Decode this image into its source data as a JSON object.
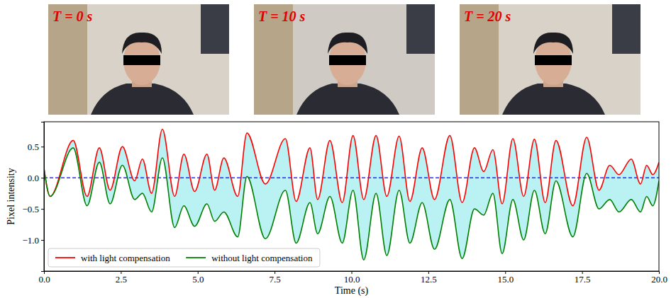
{
  "chart_data": {
    "type": "line",
    "x_label": "Time (s)",
    "y_label": "Pixel intensity",
    "x": [
      0,
      0.2,
      0.95,
      1.4,
      1.8,
      2.15,
      2.55,
      2.95,
      3.2,
      3.5,
      3.85,
      4.25,
      4.55,
      4.9,
      5.3,
      5.55,
      5.85,
      6.3,
      6.6,
      7.2,
      7.85,
      8.2,
      8.65,
      8.9,
      9.3,
      9.7,
      10.05,
      10.4,
      10.8,
      11.15,
      11.55,
      11.9,
      12.3,
      12.7,
      13.2,
      13.6,
      14.0,
      14.3,
      14.6,
      14.9,
      15.25,
      15.6,
      15.95,
      16.3,
      16.65,
      17.2,
      17.65,
      18.05,
      18.4,
      18.7,
      19.1,
      19.4,
      19.6,
      19.8,
      20
    ],
    "series": [
      {
        "name": "with light compensation",
        "color": "#ff0000",
        "values": [
          0.15,
          -0.3,
          0.6,
          -0.3,
          0.48,
          -0.2,
          0.5,
          -0.05,
          0.3,
          -0.25,
          0.78,
          -0.3,
          0.38,
          -0.22,
          0.38,
          -0.2,
          0.32,
          -0.3,
          0.72,
          -0.1,
          0.63,
          -0.38,
          0.48,
          -0.35,
          0.6,
          -0.4,
          0.68,
          -0.35,
          0.68,
          -0.3,
          0.67,
          -0.38,
          0.48,
          -0.35,
          0.68,
          -0.4,
          0.48,
          0.1,
          0.45,
          -0.42,
          0.63,
          -0.3,
          0.62,
          -0.4,
          0.6,
          -0.45,
          0.65,
          -0.2,
          0.2,
          0.05,
          0.3,
          -0.1,
          0.2,
          0.05,
          0.25
        ]
      },
      {
        "name": "without light compensation",
        "color": "#008000",
        "values": [
          0.15,
          -0.3,
          0.48,
          -0.45,
          0.25,
          -0.42,
          0.2,
          -0.35,
          -0.25,
          -0.55,
          0.32,
          -0.8,
          -0.45,
          -0.78,
          -0.42,
          -0.7,
          -0.55,
          -0.95,
          0.02,
          -0.98,
          -0.2,
          -1.05,
          -0.4,
          -0.9,
          -0.3,
          -1.05,
          -0.2,
          -1.32,
          -0.25,
          -1.25,
          -0.2,
          -1.05,
          -0.4,
          -1.15,
          -0.35,
          -1.3,
          -0.5,
          -0.6,
          -0.25,
          -1.22,
          -0.35,
          -1.0,
          -0.2,
          -0.9,
          -0.05,
          -0.95,
          0.07,
          -0.5,
          -0.35,
          -0.55,
          -0.35,
          -0.55,
          -0.3,
          -0.45,
          -0.05
        ]
      }
    ],
    "reference_lines": [
      {
        "value": 0,
        "color": "#0000ff",
        "line_style": "dashed"
      }
    ],
    "xlim": [
      0,
      20
    ],
    "xticks": [
      {
        "value": 0,
        "label": "0.0"
      },
      2.5,
      {
        "value": 5,
        "label": "5.0"
      },
      7.5,
      {
        "value": 10,
        "label": "10.0"
      },
      12.5,
      {
        "value": 15,
        "label": "15.0"
      },
      17.5,
      {
        "value": 20,
        "label": "20.0"
      }
    ],
    "ylim": [
      -1.5,
      0.9
    ],
    "yticks": [
      {
        "value": -1,
        "label": "−1.0"
      },
      {
        "value": -0.5,
        "label": "−0.5"
      },
      {
        "value": 0,
        "label": "0.0"
      },
      0.5
    ],
    "grid": false,
    "legend": "lower left"
  },
  "photos": [
    {
      "label": "T = 0 s"
    },
    {
      "label": "T = 10 s"
    },
    {
      "label": "T = 20 s"
    }
  ]
}
